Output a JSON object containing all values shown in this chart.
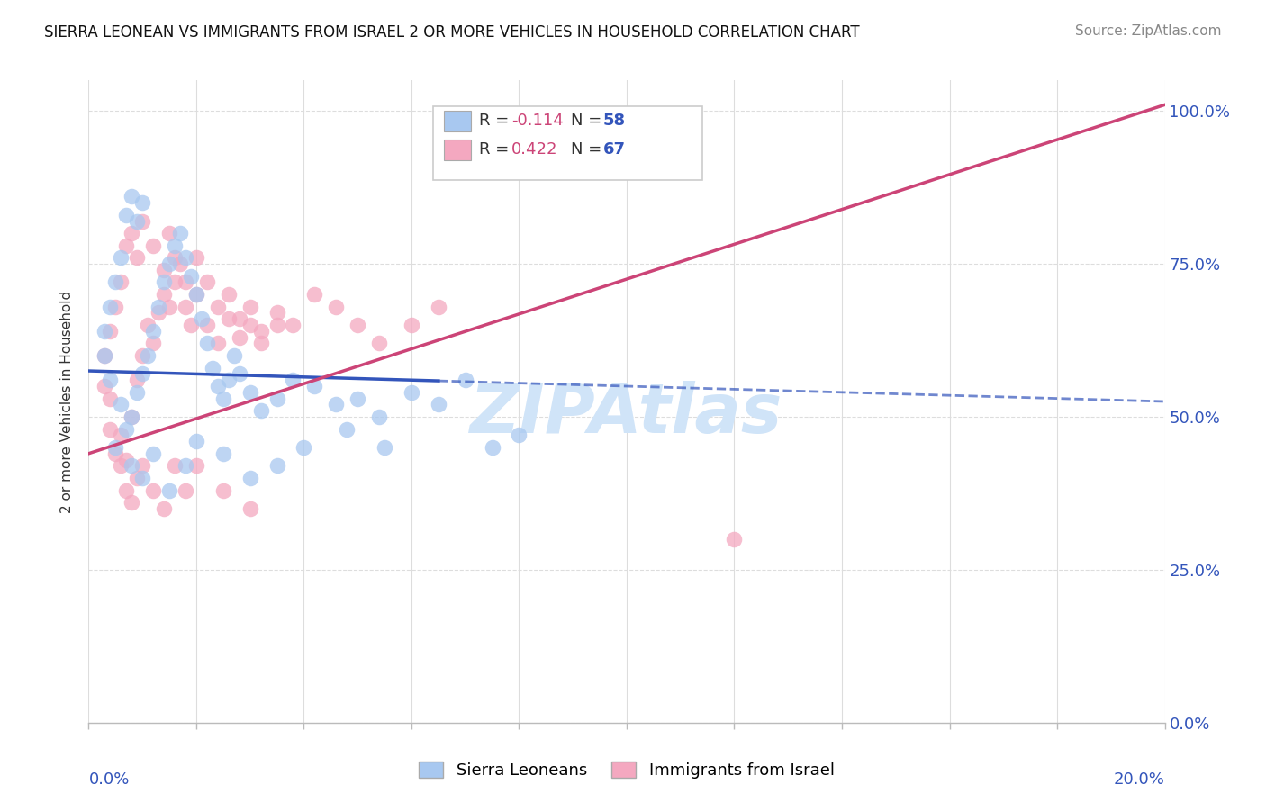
{
  "title": "SIERRA LEONEAN VS IMMIGRANTS FROM ISRAEL 2 OR MORE VEHICLES IN HOUSEHOLD CORRELATION CHART",
  "source": "Source: ZipAtlas.com",
  "ylabel": "2 or more Vehicles in Household",
  "yticks": [
    "0.0%",
    "25.0%",
    "50.0%",
    "75.0%",
    "100.0%"
  ],
  "ytick_vals": [
    0,
    25,
    50,
    75,
    100
  ],
  "xlim": [
    0,
    0.2
  ],
  "ylim": [
    0,
    105
  ],
  "color_blue": "#a8c8f0",
  "color_pink": "#f4a8c0",
  "color_blue_line": "#3355bb",
  "color_pink_line": "#cc4477",
  "watermark": "ZIPAtlas",
  "watermark_color": "#d0e4f8",
  "trendline_blue": [
    0.0,
    57.5,
    0.2,
    52.5
  ],
  "trendline_pink": [
    0.0,
    44.0,
    0.2,
    101.0
  ],
  "sierra_leonean_points": [
    [
      0.004,
      56
    ],
    [
      0.006,
      52
    ],
    [
      0.007,
      48
    ],
    [
      0.008,
      50
    ],
    [
      0.009,
      54
    ],
    [
      0.01,
      57
    ],
    [
      0.011,
      60
    ],
    [
      0.012,
      64
    ],
    [
      0.013,
      68
    ],
    [
      0.014,
      72
    ],
    [
      0.015,
      75
    ],
    [
      0.016,
      78
    ],
    [
      0.017,
      80
    ],
    [
      0.018,
      76
    ],
    [
      0.019,
      73
    ],
    [
      0.02,
      70
    ],
    [
      0.021,
      66
    ],
    [
      0.022,
      62
    ],
    [
      0.023,
      58
    ],
    [
      0.024,
      55
    ],
    [
      0.025,
      53
    ],
    [
      0.026,
      56
    ],
    [
      0.027,
      60
    ],
    [
      0.028,
      57
    ],
    [
      0.03,
      54
    ],
    [
      0.032,
      51
    ],
    [
      0.035,
      53
    ],
    [
      0.038,
      56
    ],
    [
      0.042,
      55
    ],
    [
      0.046,
      52
    ],
    [
      0.05,
      53
    ],
    [
      0.054,
      50
    ],
    [
      0.06,
      54
    ],
    [
      0.065,
      52
    ],
    [
      0.07,
      56
    ],
    [
      0.005,
      45
    ],
    [
      0.008,
      42
    ],
    [
      0.01,
      40
    ],
    [
      0.012,
      44
    ],
    [
      0.015,
      38
    ],
    [
      0.018,
      42
    ],
    [
      0.02,
      46
    ],
    [
      0.025,
      44
    ],
    [
      0.03,
      40
    ],
    [
      0.035,
      42
    ],
    [
      0.04,
      45
    ],
    [
      0.048,
      48
    ],
    [
      0.055,
      45
    ],
    [
      0.003,
      60
    ],
    [
      0.003,
      64
    ],
    [
      0.004,
      68
    ],
    [
      0.005,
      72
    ],
    [
      0.006,
      76
    ],
    [
      0.007,
      83
    ],
    [
      0.008,
      86
    ],
    [
      0.009,
      82
    ],
    [
      0.01,
      85
    ],
    [
      0.075,
      45
    ],
    [
      0.08,
      47
    ]
  ],
  "israel_points": [
    [
      0.004,
      53
    ],
    [
      0.006,
      47
    ],
    [
      0.007,
      43
    ],
    [
      0.008,
      50
    ],
    [
      0.009,
      56
    ],
    [
      0.01,
      60
    ],
    [
      0.011,
      65
    ],
    [
      0.012,
      62
    ],
    [
      0.013,
      67
    ],
    [
      0.014,
      70
    ],
    [
      0.015,
      68
    ],
    [
      0.016,
      72
    ],
    [
      0.017,
      75
    ],
    [
      0.018,
      68
    ],
    [
      0.019,
      65
    ],
    [
      0.02,
      70
    ],
    [
      0.022,
      65
    ],
    [
      0.024,
      62
    ],
    [
      0.026,
      66
    ],
    [
      0.028,
      63
    ],
    [
      0.03,
      68
    ],
    [
      0.032,
      64
    ],
    [
      0.035,
      67
    ],
    [
      0.038,
      65
    ],
    [
      0.042,
      70
    ],
    [
      0.046,
      68
    ],
    [
      0.05,
      65
    ],
    [
      0.054,
      62
    ],
    [
      0.06,
      65
    ],
    [
      0.065,
      68
    ],
    [
      0.003,
      55
    ],
    [
      0.004,
      48
    ],
    [
      0.005,
      44
    ],
    [
      0.006,
      42
    ],
    [
      0.007,
      38
    ],
    [
      0.008,
      36
    ],
    [
      0.009,
      40
    ],
    [
      0.01,
      42
    ],
    [
      0.012,
      38
    ],
    [
      0.014,
      35
    ],
    [
      0.016,
      42
    ],
    [
      0.018,
      38
    ],
    [
      0.02,
      42
    ],
    [
      0.025,
      38
    ],
    [
      0.03,
      35
    ],
    [
      0.003,
      60
    ],
    [
      0.004,
      64
    ],
    [
      0.005,
      68
    ],
    [
      0.006,
      72
    ],
    [
      0.007,
      78
    ],
    [
      0.008,
      80
    ],
    [
      0.009,
      76
    ],
    [
      0.01,
      82
    ],
    [
      0.012,
      78
    ],
    [
      0.014,
      74
    ],
    [
      0.015,
      80
    ],
    [
      0.016,
      76
    ],
    [
      0.018,
      72
    ],
    [
      0.02,
      76
    ],
    [
      0.022,
      72
    ],
    [
      0.024,
      68
    ],
    [
      0.026,
      70
    ],
    [
      0.028,
      66
    ],
    [
      0.03,
      65
    ],
    [
      0.032,
      62
    ],
    [
      0.035,
      65
    ],
    [
      0.12,
      30
    ]
  ]
}
